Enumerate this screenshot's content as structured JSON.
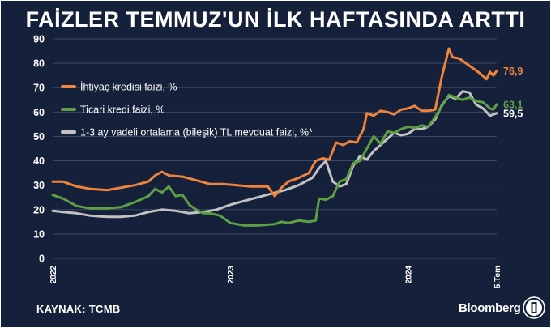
{
  "title": "FAİZLER TEMMUZ'UN İLK HAFTASINDA ARTTI",
  "source": "KAYNAK: TCMB",
  "brand": "Bloomberg",
  "logo": "bloomberg-ht-logo",
  "colors": {
    "background": "#15203a",
    "grid": "#3b4862",
    "text": "#ffffff",
    "series": [
      "#f0843a",
      "#5e9e45",
      "#c2c2c2"
    ]
  },
  "chart_data": {
    "type": "line",
    "title": "FAİZLER TEMMUZ'UN İLK HAFTASINDA ARTTI",
    "ylim": [
      0,
      90
    ],
    "yticks": [
      0,
      10,
      20,
      30,
      40,
      50,
      60,
      70,
      80,
      90
    ],
    "xlim": [
      "2022-01-07",
      "2024-07-05"
    ],
    "xticks": [
      {
        "label": "2022",
        "date": "2022-01-07"
      },
      {
        "label": "2023",
        "date": "2023-01-06"
      },
      {
        "label": "2024",
        "date": "2024-01-05"
      },
      {
        "label": "5.Tem",
        "date": "2024-07-05"
      }
    ],
    "grid": true,
    "legend": "top-left",
    "series": [
      {
        "name": "İhtiyaç kredisi faizi, %",
        "color": "#f0843a",
        "end_label": "76,9",
        "points": [
          [
            "2022-01-07",
            31.5
          ],
          [
            "2022-01-28",
            31.5
          ],
          [
            "2022-02-25",
            29.5
          ],
          [
            "2022-03-25",
            28.5
          ],
          [
            "2022-04-29",
            28.0
          ],
          [
            "2022-05-27",
            29.0
          ],
          [
            "2022-06-24",
            30.0
          ],
          [
            "2022-07-22",
            31.5
          ],
          [
            "2022-08-05",
            34.0
          ],
          [
            "2022-08-19",
            35.5
          ],
          [
            "2022-09-02",
            34.0
          ],
          [
            "2022-09-30",
            33.5
          ],
          [
            "2022-10-28",
            32.0
          ],
          [
            "2022-11-25",
            30.5
          ],
          [
            "2022-12-23",
            30.5
          ],
          [
            "2023-01-20",
            30.0
          ],
          [
            "2023-02-17",
            29.5
          ],
          [
            "2023-03-10",
            29.5
          ],
          [
            "2023-03-24",
            29.5
          ],
          [
            "2023-04-07",
            25.5
          ],
          [
            "2023-04-21",
            29.0
          ],
          [
            "2023-05-05",
            31.5
          ],
          [
            "2023-05-26",
            33.0
          ],
          [
            "2023-06-16",
            35.0
          ],
          [
            "2023-06-30",
            40.0
          ],
          [
            "2023-07-14",
            41.0
          ],
          [
            "2023-07-28",
            40.5
          ],
          [
            "2023-08-11",
            47.5
          ],
          [
            "2023-08-25",
            46.5
          ],
          [
            "2023-09-08",
            48.0
          ],
          [
            "2023-09-22",
            47.5
          ],
          [
            "2023-10-06",
            53.0
          ],
          [
            "2023-10-13",
            59.5
          ],
          [
            "2023-10-27",
            58.5
          ],
          [
            "2023-11-10",
            60.5
          ],
          [
            "2023-11-24",
            60.0
          ],
          [
            "2023-12-08",
            59.0
          ],
          [
            "2023-12-22",
            61.0
          ],
          [
            "2024-01-05",
            61.5
          ],
          [
            "2024-01-19",
            62.5
          ],
          [
            "2024-02-02",
            60.5
          ],
          [
            "2024-02-16",
            60.5
          ],
          [
            "2024-03-01",
            61.0
          ],
          [
            "2024-03-15",
            75.0
          ],
          [
            "2024-03-29",
            86.0
          ],
          [
            "2024-04-05",
            82.5
          ],
          [
            "2024-04-19",
            82.0
          ],
          [
            "2024-05-03",
            80.0
          ],
          [
            "2024-05-17",
            78.0
          ],
          [
            "2024-05-31",
            76.0
          ],
          [
            "2024-06-14",
            73.5
          ],
          [
            "2024-06-21",
            76.5
          ],
          [
            "2024-06-28",
            75.0
          ],
          [
            "2024-07-05",
            76.9
          ]
        ]
      },
      {
        "name": "Ticari kredi faizi, %",
        "color": "#5e9e45",
        "end_label": "63,1",
        "points": [
          [
            "2022-01-07",
            26.0
          ],
          [
            "2022-01-28",
            24.5
          ],
          [
            "2022-02-25",
            21.5
          ],
          [
            "2022-03-25",
            20.5
          ],
          [
            "2022-04-29",
            20.5
          ],
          [
            "2022-05-27",
            21.0
          ],
          [
            "2022-06-24",
            23.0
          ],
          [
            "2022-07-22",
            25.5
          ],
          [
            "2022-08-05",
            28.5
          ],
          [
            "2022-08-19",
            27.0
          ],
          [
            "2022-09-02",
            29.5
          ],
          [
            "2022-09-16",
            25.5
          ],
          [
            "2022-09-30",
            26.0
          ],
          [
            "2022-10-14",
            22.0
          ],
          [
            "2022-10-28",
            20.0
          ],
          [
            "2022-11-11",
            18.5
          ],
          [
            "2022-11-25",
            18.5
          ],
          [
            "2022-12-16",
            17.5
          ],
          [
            "2023-01-06",
            14.5
          ],
          [
            "2023-02-03",
            13.5
          ],
          [
            "2023-03-03",
            13.5
          ],
          [
            "2023-04-07",
            14.0
          ],
          [
            "2023-04-21",
            15.0
          ],
          [
            "2023-05-05",
            14.5
          ],
          [
            "2023-05-26",
            15.5
          ],
          [
            "2023-06-16",
            15.0
          ],
          [
            "2023-06-30",
            15.5
          ],
          [
            "2023-07-07",
            24.5
          ],
          [
            "2023-07-21",
            24.0
          ],
          [
            "2023-08-04",
            25.5
          ],
          [
            "2023-08-18",
            31.5
          ],
          [
            "2023-09-01",
            32.5
          ],
          [
            "2023-09-15",
            39.0
          ],
          [
            "2023-09-29",
            40.0
          ],
          [
            "2023-10-13",
            45.0
          ],
          [
            "2023-10-27",
            50.0
          ],
          [
            "2023-11-10",
            47.0
          ],
          [
            "2023-11-24",
            52.0
          ],
          [
            "2023-12-08",
            51.5
          ],
          [
            "2023-12-22",
            53.0
          ],
          [
            "2024-01-05",
            54.0
          ],
          [
            "2024-01-19",
            53.5
          ],
          [
            "2024-02-02",
            54.5
          ],
          [
            "2024-02-16",
            54.0
          ],
          [
            "2024-03-01",
            58.0
          ],
          [
            "2024-03-15",
            62.5
          ],
          [
            "2024-03-29",
            67.0
          ],
          [
            "2024-04-12",
            66.0
          ],
          [
            "2024-04-26",
            65.0
          ],
          [
            "2024-05-10",
            66.0
          ],
          [
            "2024-05-24",
            64.5
          ],
          [
            "2024-06-07",
            64.0
          ],
          [
            "2024-06-21",
            61.5
          ],
          [
            "2024-06-28",
            61.0
          ],
          [
            "2024-07-05",
            63.1
          ]
        ]
      },
      {
        "name": "1-3 ay vadeli ortalama (bileşik) TL mevduat faizi, %*",
        "color": "#c2c2c2",
        "end_label": "59,5",
        "points": [
          [
            "2022-01-07",
            19.5
          ],
          [
            "2022-01-28",
            19.0
          ],
          [
            "2022-02-25",
            18.5
          ],
          [
            "2022-03-25",
            17.5
          ],
          [
            "2022-04-29",
            17.0
          ],
          [
            "2022-05-27",
            17.0
          ],
          [
            "2022-06-24",
            17.5
          ],
          [
            "2022-07-22",
            19.0
          ],
          [
            "2022-08-19",
            20.0
          ],
          [
            "2022-09-16",
            19.5
          ],
          [
            "2022-10-14",
            18.5
          ],
          [
            "2022-11-11",
            19.0
          ],
          [
            "2022-12-09",
            20.0
          ],
          [
            "2023-01-06",
            22.0
          ],
          [
            "2023-02-03",
            23.5
          ],
          [
            "2023-03-03",
            25.0
          ],
          [
            "2023-03-31",
            26.5
          ],
          [
            "2023-04-28",
            28.0
          ],
          [
            "2023-05-26",
            30.0
          ],
          [
            "2023-06-23",
            33.0
          ],
          [
            "2023-07-07",
            37.0
          ],
          [
            "2023-07-21",
            40.0
          ],
          [
            "2023-08-04",
            31.5
          ],
          [
            "2023-08-18",
            29.5
          ],
          [
            "2023-09-01",
            30.5
          ],
          [
            "2023-09-15",
            38.0
          ],
          [
            "2023-09-29",
            42.0
          ],
          [
            "2023-10-13",
            40.5
          ],
          [
            "2023-10-27",
            44.0
          ],
          [
            "2023-11-10",
            46.5
          ],
          [
            "2023-11-24",
            49.0
          ],
          [
            "2023-12-08",
            51.5
          ],
          [
            "2023-12-22",
            50.5
          ],
          [
            "2024-01-05",
            51.0
          ],
          [
            "2024-01-19",
            53.0
          ],
          [
            "2024-02-02",
            53.0
          ],
          [
            "2024-02-16",
            54.0
          ],
          [
            "2024-03-01",
            57.0
          ],
          [
            "2024-03-15",
            63.0
          ],
          [
            "2024-03-29",
            66.5
          ],
          [
            "2024-04-12",
            65.5
          ],
          [
            "2024-04-26",
            68.5
          ],
          [
            "2024-05-10",
            68.0
          ],
          [
            "2024-05-24",
            63.0
          ],
          [
            "2024-06-07",
            61.5
          ],
          [
            "2024-06-21",
            58.5
          ],
          [
            "2024-07-05",
            59.5
          ]
        ]
      }
    ]
  }
}
